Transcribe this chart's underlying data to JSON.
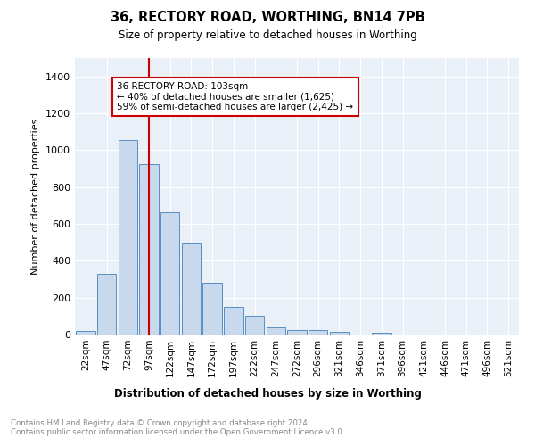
{
  "title": "36, RECTORY ROAD, WORTHING, BN14 7PB",
  "subtitle": "Size of property relative to detached houses in Worthing",
  "xlabel": "Distribution of detached houses by size in Worthing",
  "ylabel": "Number of detached properties",
  "bar_labels": [
    "22sqm",
    "47sqm",
    "72sqm",
    "97sqm",
    "122sqm",
    "147sqm",
    "172sqm",
    "197sqm",
    "222sqm",
    "247sqm",
    "272sqm",
    "296sqm",
    "321sqm",
    "346sqm",
    "371sqm",
    "396sqm",
    "421sqm",
    "446sqm",
    "471sqm",
    "496sqm",
    "521sqm"
  ],
  "bar_values": [
    20,
    330,
    1055,
    925,
    665,
    500,
    280,
    150,
    100,
    40,
    25,
    25,
    15,
    0,
    10,
    0,
    0,
    0,
    0,
    0,
    0
  ],
  "bar_color": "#c9d9ed",
  "bar_edge_color": "#5a8fc2",
  "ylim": [
    0,
    1500
  ],
  "yticks": [
    0,
    200,
    400,
    600,
    800,
    1000,
    1200,
    1400
  ],
  "vline_x_index": 3,
  "vline_color": "#cc0000",
  "annotation_text": "36 RECTORY ROAD: 103sqm\n← 40% of detached houses are smaller (1,625)\n59% of semi-detached houses are larger (2,425) →",
  "annotation_box_color": "white",
  "annotation_box_edge_color": "#cc0000",
  "footer_text": "Contains HM Land Registry data © Crown copyright and database right 2024.\nContains public sector information licensed under the Open Government Licence v3.0.",
  "plot_bg_color": "#eaf0f8",
  "grid_color": "white"
}
